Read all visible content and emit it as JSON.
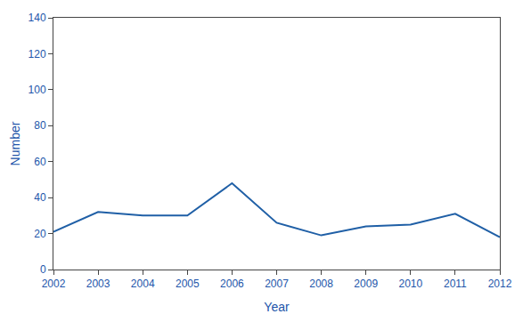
{
  "chart_data": {
    "type": "line",
    "x_label": "Year",
    "y_label": "Number",
    "x": [
      2002,
      2003,
      2004,
      2005,
      2006,
      2007,
      2008,
      2009,
      2010,
      2011,
      2012
    ],
    "values": [
      21,
      32,
      30,
      30,
      48,
      26,
      19,
      24,
      25,
      31,
      18
    ],
    "color": "#1f5fa6",
    "xlim": [
      2002,
      2012
    ],
    "xticks": [
      2002,
      2003,
      2004,
      2005,
      2006,
      2007,
      2008,
      2009,
      2010,
      2011,
      2012
    ],
    "ylim": [
      0,
      140
    ],
    "yticks": [
      0,
      20,
      40,
      60,
      80,
      100,
      120,
      140
    ],
    "grid": false
  }
}
